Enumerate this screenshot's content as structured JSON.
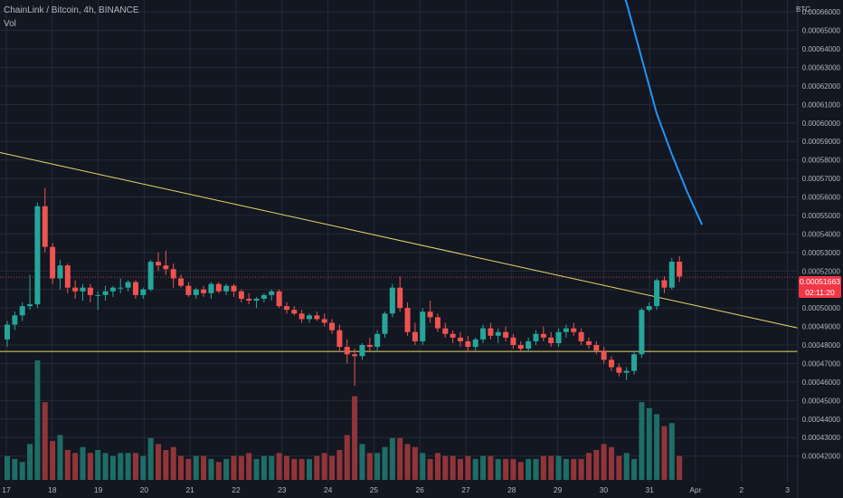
{
  "header": {
    "title": "ChainLink / Bitcoin, 4h, BINANCE",
    "volume_label": "Vol",
    "currency": "BTC"
  },
  "last_price": {
    "value": "0.00051663",
    "countdown": "02:11:20"
  },
  "colors": {
    "up": "#26a69a",
    "down": "#ef5350",
    "up_volume": "#1e6d66",
    "down_volume": "#913539",
    "trendline": "#e8d96b",
    "moving_average": "#2196f3",
    "grid": "#252a36",
    "background": "#131722"
  },
  "chart_data": {
    "type": "candlestick",
    "title": "ChainLink / Bitcoin, 4h, BINANCE",
    "y_axis": {
      "ticks": [
        "0.00042000",
        "0.00043000",
        "0.00044000",
        "0.00045000",
        "0.00046000",
        "0.00047000",
        "0.00048000",
        "0.00049000",
        "0.00050000",
        "0.00051000",
        "0.00052000",
        "0.00053000",
        "0.00054000",
        "0.00055000",
        "0.00056000",
        "0.00057000",
        "0.00058000",
        "0.00059000",
        "0.00060000",
        "0.00061000",
        "0.00062000",
        "0.00063000",
        "0.00064000",
        "0.00065000",
        "0.00066000"
      ],
      "position": "right"
    },
    "x_axis": {
      "ticks": [
        "17",
        "18",
        "19",
        "20",
        "21",
        "22",
        "23",
        "24",
        "25",
        "26",
        "27",
        "28",
        "29",
        "30",
        "31",
        "Apr",
        "2",
        "3"
      ]
    },
    "grid": true,
    "candles": [
      [
        0.000483,
        0.000493,
        0.000479,
        0.000491
      ],
      [
        0.000491,
        0.000498,
        0.000488,
        0.000496
      ],
      [
        0.000496,
        0.000503,
        0.000493,
        0.000501
      ],
      [
        0.000501,
        0.000518,
        0.000499,
        0.000502
      ],
      [
        0.000502,
        0.000557,
        0.0005,
        0.000555
      ],
      [
        0.000555,
        0.000565,
        0.00053,
        0.000533
      ],
      [
        0.000533,
        0.000535,
        0.000513,
        0.000516
      ],
      [
        0.000516,
        0.000526,
        0.00051,
        0.000523
      ],
      [
        0.000523,
        0.000524,
        0.000508,
        0.000511
      ],
      [
        0.000511,
        0.000515,
        0.000505,
        0.000509
      ],
      [
        0.000509,
        0.000513,
        0.000504,
        0.000511
      ],
      [
        0.000511,
        0.000513,
        0.000503,
        0.000507
      ],
      [
        0.000507,
        0.000509,
        0.000499,
        0.000507
      ],
      [
        0.000507,
        0.000512,
        0.000504,
        0.000509
      ],
      [
        0.000509,
        0.000512,
        0.000506,
        0.000511
      ],
      [
        0.000511,
        0.000516,
        0.000508,
        0.000511
      ],
      [
        0.000511,
        0.000515,
        0.000509,
        0.000514
      ],
      [
        0.000514,
        0.000515,
        0.000505,
        0.000507
      ],
      [
        0.000507,
        0.000511,
        0.000505,
        0.00051
      ],
      [
        0.00051,
        0.000526,
        0.000509,
        0.000525
      ],
      [
        0.000525,
        0.00053,
        0.00052,
        0.000523
      ],
      [
        0.000523,
        0.000531,
        0.000518,
        0.000521
      ],
      [
        0.000521,
        0.000524,
        0.000511,
        0.000516
      ],
      [
        0.000516,
        0.000518,
        0.000511,
        0.000512
      ],
      [
        0.000512,
        0.000514,
        0.000506,
        0.000507
      ],
      [
        0.000507,
        0.000511,
        0.000505,
        0.00051
      ],
      [
        0.00051,
        0.000512,
        0.000506,
        0.000508
      ],
      [
        0.000508,
        0.000514,
        0.000505,
        0.000513
      ],
      [
        0.000513,
        0.000514,
        0.000508,
        0.000509
      ],
      [
        0.000509,
        0.000513,
        0.000507,
        0.000512
      ],
      [
        0.000512,
        0.000513,
        0.000506,
        0.000509
      ],
      [
        0.000509,
        0.00051,
        0.000503,
        0.000505
      ],
      [
        0.000505,
        0.000508,
        0.000502,
        0.000504
      ],
      [
        0.000504,
        0.000506,
        0.0005,
        0.000505
      ],
      [
        0.000505,
        0.000508,
        0.000503,
        0.000507
      ],
      [
        0.000507,
        0.00051,
        0.000504,
        0.000509
      ],
      [
        0.000509,
        0.00051,
        0.0005,
        0.000501
      ],
      [
        0.000501,
        0.000503,
        0.000497,
        0.000499
      ],
      [
        0.000499,
        0.000501,
        0.000496,
        0.000497
      ],
      [
        0.000497,
        0.000499,
        0.000492,
        0.000494
      ],
      [
        0.000494,
        0.000497,
        0.000492,
        0.000496
      ],
      [
        0.000496,
        0.000498,
        0.000493,
        0.000494
      ],
      [
        0.000494,
        0.000497,
        0.00049,
        0.000492
      ],
      [
        0.000492,
        0.000494,
        0.000486,
        0.000488
      ],
      [
        0.000488,
        0.000491,
        0.000477,
        0.000479
      ],
      [
        0.000479,
        0.000483,
        0.00047,
        0.000475
      ],
      [
        0.000475,
        0.000478,
        0.000458,
        0.000474
      ],
      [
        0.000474,
        0.000481,
        0.000472,
        0.00048
      ],
      [
        0.00048,
        0.000484,
        0.000476,
        0.000479
      ],
      [
        0.000479,
        0.000488,
        0.000476,
        0.000486
      ],
      [
        0.000486,
        0.000498,
        0.000484,
        0.000497
      ],
      [
        0.000497,
        0.000513,
        0.000495,
        0.000511
      ],
      [
        0.000511,
        0.000517,
        0.000498,
        0.0005
      ],
      [
        0.0005,
        0.000503,
        0.000485,
        0.000487
      ],
      [
        0.000487,
        0.000492,
        0.00048,
        0.000482
      ],
      [
        0.000482,
        0.0005,
        0.00048,
        0.000498
      ],
      [
        0.000498,
        0.000504,
        0.000492,
        0.000495
      ],
      [
        0.000495,
        0.000497,
        0.000487,
        0.000489
      ],
      [
        0.000489,
        0.000492,
        0.000484,
        0.000486
      ],
      [
        0.000486,
        0.000488,
        0.000481,
        0.000484
      ],
      [
        0.000484,
        0.000487,
        0.000479,
        0.000482
      ],
      [
        0.000482,
        0.000485,
        0.000476,
        0.000479
      ],
      [
        0.000479,
        0.000484,
        0.000477,
        0.000483
      ],
      [
        0.000483,
        0.000491,
        0.000481,
        0.000489
      ],
      [
        0.000489,
        0.000492,
        0.000483,
        0.000485
      ],
      [
        0.000485,
        0.000489,
        0.000481,
        0.000487
      ],
      [
        0.000487,
        0.00049,
        0.000482,
        0.000484
      ],
      [
        0.000484,
        0.000486,
        0.000478,
        0.00048
      ],
      [
        0.00048,
        0.000482,
        0.000476,
        0.000478
      ],
      [
        0.000478,
        0.000484,
        0.000476,
        0.000482
      ],
      [
        0.000482,
        0.000488,
        0.00048,
        0.000486
      ],
      [
        0.000486,
        0.00049,
        0.000482,
        0.000484
      ],
      [
        0.000484,
        0.000487,
        0.000479,
        0.000481
      ],
      [
        0.000481,
        0.000489,
        0.000479,
        0.000487
      ],
      [
        0.000487,
        0.000491,
        0.000484,
        0.000489
      ],
      [
        0.000489,
        0.000492,
        0.000485,
        0.000487
      ],
      [
        0.000487,
        0.000489,
        0.00048,
        0.000482
      ],
      [
        0.000482,
        0.000484,
        0.000478,
        0.00048
      ],
      [
        0.00048,
        0.000482,
        0.000475,
        0.000477
      ],
      [
        0.000477,
        0.000479,
        0.00047,
        0.000472
      ],
      [
        0.000472,
        0.000474,
        0.000466,
        0.000468
      ],
      [
        0.000468,
        0.00047,
        0.000463,
        0.000465
      ],
      [
        0.000465,
        0.000468,
        0.000461,
        0.000466
      ],
      [
        0.000466,
        0.000477,
        0.000464,
        0.000475
      ],
      [
        0.000475,
        0.0005,
        0.000473,
        0.000499
      ],
      [
        0.000499,
        0.000503,
        0.000498,
        0.000501
      ],
      [
        0.000501,
        0.000516,
        0.000499,
        0.000515
      ],
      [
        0.000515,
        0.000517,
        0.000508,
        0.000511
      ],
      [
        0.000511,
        0.000527,
        0.00051,
        0.000525
      ],
      [
        0.000525,
        0.000528,
        0.000514,
        0.000517
      ]
    ],
    "volume": [
      8,
      7,
      6,
      12,
      40,
      26,
      13,
      15,
      10,
      9,
      11,
      9,
      10,
      9,
      8,
      9,
      9,
      9,
      8,
      14,
      12,
      10,
      11,
      8,
      7,
      8,
      8,
      7,
      6,
      7,
      8,
      8,
      9,
      7,
      8,
      8,
      9,
      8,
      7,
      7,
      7,
      8,
      9,
      8,
      10,
      15,
      28,
      12,
      9,
      9,
      11,
      14,
      14,
      12,
      11,
      9,
      7,
      9,
      8,
      8,
      7,
      8,
      7,
      8,
      8,
      7,
      7,
      7,
      6,
      7,
      7,
      8,
      8,
      8,
      7,
      7,
      7,
      9,
      10,
      12,
      11,
      8,
      9,
      7,
      26,
      24,
      22,
      18,
      19,
      8
    ],
    "volume_ylim": [
      0,
      40
    ],
    "trendlines": [
      {
        "type": "descending",
        "start": [
          0,
          0.000584
        ],
        "end": [
          89,
          0.000498
        ]
      },
      {
        "type": "horizontal",
        "value": 0.0004765
      }
    ],
    "moving_average": [
      [
        80,
        0.000686
      ],
      [
        82,
        0.000665
      ],
      [
        84,
        0.000635
      ],
      [
        86,
        0.000605
      ],
      [
        88,
        0.000583
      ],
      [
        90,
        0.000563
      ],
      [
        92,
        0.000545
      ]
    ],
    "ylim": [
      0.000412,
      0.000664
    ]
  }
}
